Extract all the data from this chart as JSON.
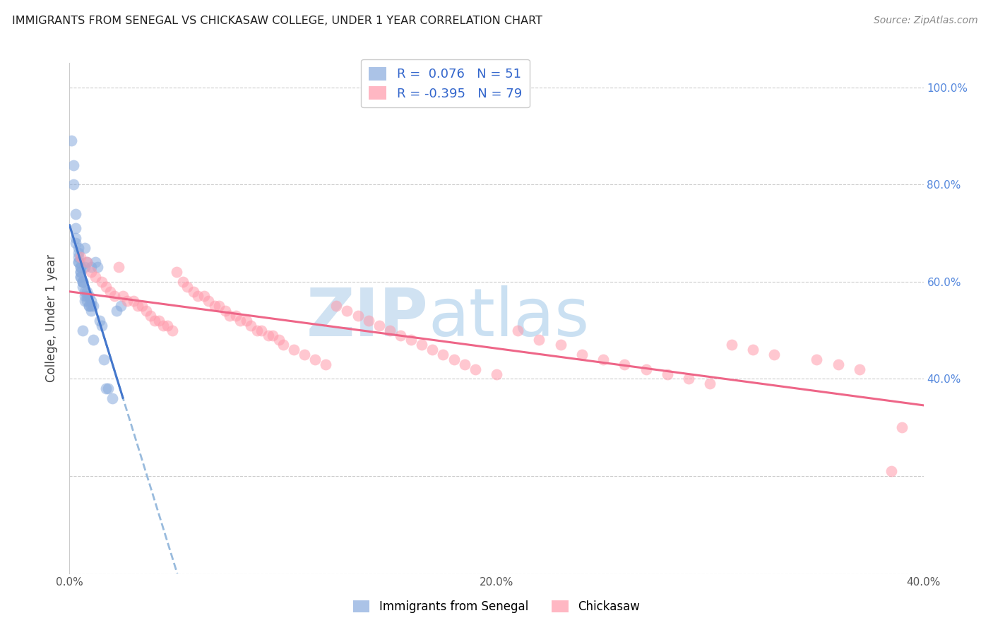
{
  "title": "IMMIGRANTS FROM SENEGAL VS CHICKASAW COLLEGE, UNDER 1 YEAR CORRELATION CHART",
  "source": "Source: ZipAtlas.com",
  "ylabel": "College, Under 1 year",
  "legend_labels": [
    "Immigrants from Senegal",
    "Chickasaw"
  ],
  "r_blue": " 0.076",
  "n_blue": "51",
  "r_pink": "-0.395",
  "n_pink": "79",
  "blue_color": "#88AADD",
  "pink_color": "#FF99AA",
  "blue_line_color": "#4477CC",
  "pink_line_color": "#EE6688",
  "dashed_line_color": "#99BBDD",
  "watermark_zip": "ZIP",
  "watermark_atlas": "atlas",
  "blue_scatter_x": [
    0.001,
    0.002,
    0.002,
    0.003,
    0.003,
    0.003,
    0.003,
    0.004,
    0.004,
    0.004,
    0.004,
    0.004,
    0.005,
    0.005,
    0.005,
    0.005,
    0.005,
    0.005,
    0.006,
    0.006,
    0.006,
    0.006,
    0.007,
    0.007,
    0.007,
    0.007,
    0.008,
    0.008,
    0.008,
    0.009,
    0.009,
    0.01,
    0.01,
    0.01,
    0.011,
    0.011,
    0.012,
    0.013,
    0.014,
    0.015,
    0.016,
    0.017,
    0.018,
    0.02,
    0.022,
    0.024,
    0.008,
    0.009,
    0.01,
    0.006,
    0.007
  ],
  "blue_scatter_y": [
    0.89,
    0.84,
    0.8,
    0.74,
    0.71,
    0.69,
    0.68,
    0.67,
    0.66,
    0.65,
    0.64,
    0.64,
    0.63,
    0.63,
    0.62,
    0.62,
    0.61,
    0.61,
    0.6,
    0.6,
    0.6,
    0.59,
    0.67,
    0.58,
    0.57,
    0.56,
    0.64,
    0.57,
    0.56,
    0.55,
    0.55,
    0.54,
    0.63,
    0.55,
    0.48,
    0.55,
    0.64,
    0.63,
    0.52,
    0.51,
    0.44,
    0.38,
    0.38,
    0.36,
    0.54,
    0.55,
    0.58,
    0.57,
    0.56,
    0.5,
    0.63
  ],
  "pink_scatter_x": [
    0.005,
    0.008,
    0.01,
    0.012,
    0.015,
    0.017,
    0.019,
    0.021,
    0.023,
    0.025,
    0.027,
    0.03,
    0.032,
    0.034,
    0.036,
    0.038,
    0.04,
    0.042,
    0.044,
    0.046,
    0.048,
    0.05,
    0.053,
    0.055,
    0.058,
    0.06,
    0.063,
    0.065,
    0.068,
    0.07,
    0.073,
    0.075,
    0.078,
    0.08,
    0.083,
    0.085,
    0.088,
    0.09,
    0.093,
    0.095,
    0.098,
    0.1,
    0.105,
    0.11,
    0.115,
    0.12,
    0.125,
    0.13,
    0.135,
    0.14,
    0.145,
    0.15,
    0.155,
    0.16,
    0.165,
    0.17,
    0.175,
    0.18,
    0.185,
    0.19,
    0.2,
    0.21,
    0.22,
    0.23,
    0.24,
    0.25,
    0.26,
    0.27,
    0.28,
    0.29,
    0.3,
    0.31,
    0.32,
    0.33,
    0.35,
    0.36,
    0.37,
    0.385,
    0.39
  ],
  "pink_scatter_y": [
    0.65,
    0.64,
    0.62,
    0.61,
    0.6,
    0.59,
    0.58,
    0.57,
    0.63,
    0.57,
    0.56,
    0.56,
    0.55,
    0.55,
    0.54,
    0.53,
    0.52,
    0.52,
    0.51,
    0.51,
    0.5,
    0.62,
    0.6,
    0.59,
    0.58,
    0.57,
    0.57,
    0.56,
    0.55,
    0.55,
    0.54,
    0.53,
    0.53,
    0.52,
    0.52,
    0.51,
    0.5,
    0.5,
    0.49,
    0.49,
    0.48,
    0.47,
    0.46,
    0.45,
    0.44,
    0.43,
    0.55,
    0.54,
    0.53,
    0.52,
    0.51,
    0.5,
    0.49,
    0.48,
    0.47,
    0.46,
    0.45,
    0.44,
    0.43,
    0.42,
    0.41,
    0.5,
    0.48,
    0.47,
    0.45,
    0.44,
    0.43,
    0.42,
    0.41,
    0.4,
    0.39,
    0.47,
    0.46,
    0.45,
    0.44,
    0.43,
    0.42,
    0.21,
    0.3
  ]
}
